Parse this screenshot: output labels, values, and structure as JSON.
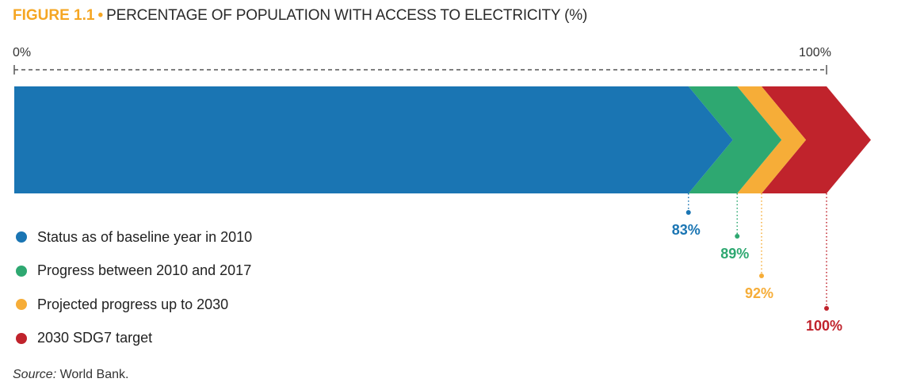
{
  "figure": {
    "number": "FIGURE 1.1",
    "separator": "•",
    "title": "PERCENTAGE OF POPULATION WITH ACCESS TO ELECTRICITY (%)"
  },
  "axis": {
    "min_label": "0%",
    "max_label": "100%"
  },
  "chart_data": {
    "type": "bar",
    "orientation": "horizontal-stacked-arrow",
    "title": "PERCENTAGE OF POPULATION WITH ACCESS TO ELECTRICITY (%)",
    "xlim": [
      0,
      100
    ],
    "series": [
      {
        "name": "Status as of baseline year in 2010",
        "value": 83,
        "label": "83%",
        "color": "#1a75b3"
      },
      {
        "name": "Progress between 2010 and 2017",
        "value": 89,
        "label": "89%",
        "color": "#2ea871"
      },
      {
        "name": "Projected progress up to 2030",
        "value": 92,
        "label": "92%",
        "color": "#f6ad38"
      },
      {
        "name": "2030 SDG7 target",
        "value": 100,
        "label": "100%",
        "color": "#c0232c"
      }
    ]
  },
  "source": {
    "prefix": "Source:",
    "text": " World Bank."
  }
}
